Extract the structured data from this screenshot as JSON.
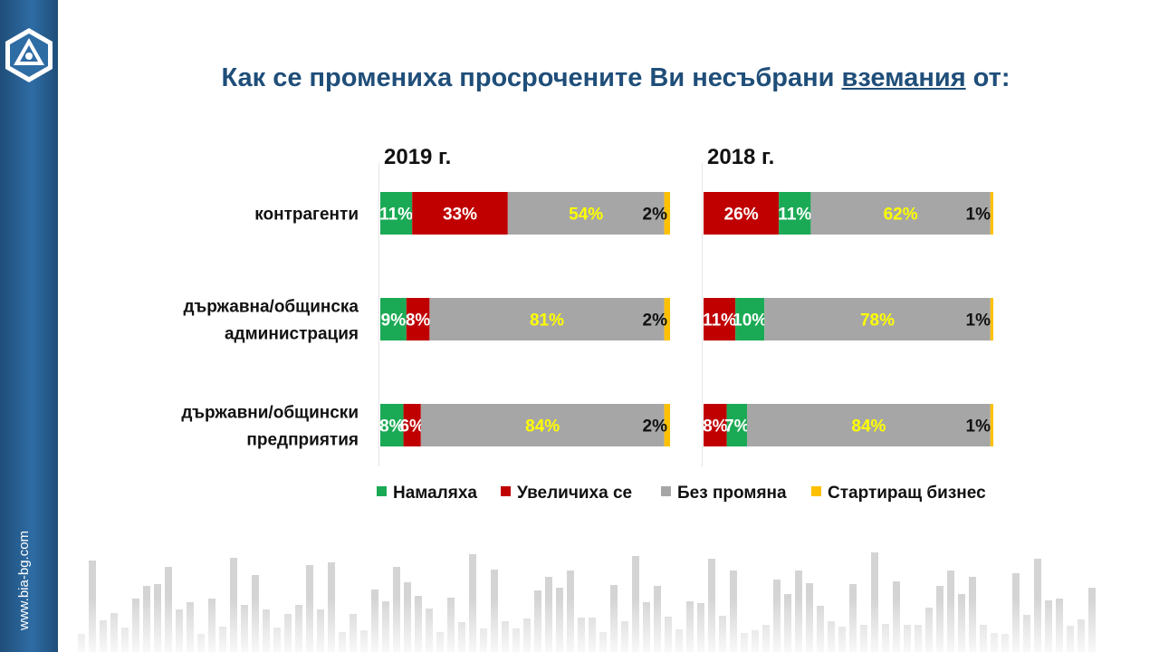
{
  "slide": {
    "title_main": "Как се промениха просрочените Ви несъбрани ",
    "title_keyword": "вземания",
    "title_end": " от:",
    "website": "www.bia-bg.com",
    "icons": [
      "bia-logo-icon"
    ],
    "colors": {
      "sidebar": "#1f4e79",
      "title": "#1f4e79"
    }
  },
  "chart_data": [
    {
      "type": "bar",
      "orientation": "horizontal",
      "stacked": true,
      "title": "2019 г.",
      "categories": [
        "контрагенти",
        "държавна/общинска администрация",
        "държавни/общински предприятия"
      ],
      "series": [
        {
          "name": "Намаляха",
          "color": "#1aaa55",
          "values": [
            11,
            9,
            8
          ],
          "labels": [
            "11%",
            "9%",
            "8%"
          ]
        },
        {
          "name": "Увеличиха се",
          "color": "#c00000",
          "values": [
            33,
            8,
            6
          ],
          "labels": [
            "33%",
            "8%",
            "6%"
          ]
        },
        {
          "name": "Без промяна",
          "color": "#a6a6a6",
          "values": [
            54,
            81,
            84
          ],
          "labels": [
            "54%",
            "81%",
            "84%"
          ]
        },
        {
          "name": "Стартиращ бизнес",
          "color": "#ffc000",
          "values": [
            2,
            2,
            2
          ],
          "labels": [
            "2%",
            "2%",
            "2%"
          ]
        }
      ],
      "xlim": [
        0,
        100
      ],
      "grid": false
    },
    {
      "type": "bar",
      "orientation": "horizontal",
      "stacked": true,
      "title": "2018 г.",
      "categories": [
        "контрагенти",
        "държавна/общинска администрация",
        "държавни/общински предприятия"
      ],
      "series": [
        {
          "name": "Увеличиха се",
          "color": "#c00000",
          "values": [
            26,
            11,
            8
          ],
          "labels": [
            "26%",
            "11%",
            "8%"
          ]
        },
        {
          "name": "Намаляха",
          "color": "#1aaa55",
          "values": [
            11,
            10,
            7
          ],
          "labels": [
            "11%",
            "10%",
            "7%"
          ]
        },
        {
          "name": "Без промяна",
          "color": "#a6a6a6",
          "values": [
            62,
            78,
            84
          ],
          "labels": [
            "62%",
            "78%",
            "84%"
          ]
        },
        {
          "name": "Стартиращ бизнес",
          "color": "#ffc000",
          "values": [
            1,
            1,
            1
          ],
          "labels": [
            "1%",
            "1%",
            "1%"
          ]
        }
      ],
      "xlim": [
        0,
        100
      ],
      "grid": false
    }
  ],
  "category_labels": [
    [
      "контрагенти"
    ],
    [
      "държавна/общинска",
      "администрация"
    ],
    [
      "държавни/общински",
      "предприятия"
    ]
  ],
  "legend": {
    "position": "bottom",
    "items": [
      {
        "name": "Намаляха",
        "color": "#1aaa55"
      },
      {
        "name": "Увеличиха се",
        "color": "#c00000"
      },
      {
        "name": "Без промяна",
        "color": "#a6a6a6"
      },
      {
        "name": "Стартиращ бизнес",
        "color": "#ffc000"
      }
    ]
  }
}
